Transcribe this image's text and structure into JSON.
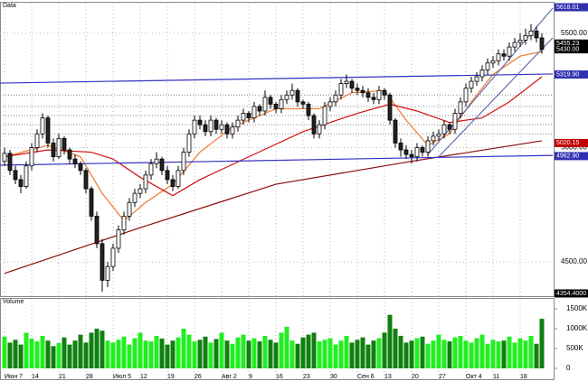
{
  "chart_data": {
    "type": "candlestick",
    "panel_title": "Data",
    "volume_title": "Volume",
    "categories": [
      "Июн 7",
      null,
      null,
      null,
      null,
      "14",
      null,
      null,
      null,
      null,
      "21",
      null,
      null,
      null,
      null,
      "28",
      null,
      null,
      null,
      null,
      "Июл 5",
      null,
      null,
      null,
      null,
      "12",
      null,
      null,
      null,
      null,
      "19",
      null,
      null,
      null,
      null,
      "26",
      null,
      null,
      null,
      null,
      "Авг 2",
      null,
      null,
      null,
      null,
      "9",
      null,
      null,
      null,
      null,
      "16",
      null,
      null,
      null,
      null,
      "23",
      null,
      null,
      null,
      null,
      "30",
      null,
      null,
      null,
      null,
      "Сен 6",
      null,
      null,
      null,
      null,
      "13",
      null,
      null,
      null,
      null,
      "20",
      null,
      null,
      null,
      null,
      "27",
      null,
      null,
      null,
      null,
      "Окт 4",
      null,
      null,
      null,
      null,
      "11",
      null,
      null,
      null,
      null,
      "18",
      null,
      null,
      null,
      null
    ],
    "candles": [
      [
        4940,
        5000,
        4920,
        4975
      ],
      [
        4975,
        4990,
        4880,
        4900
      ],
      [
        4900,
        4920,
        4840,
        4860
      ],
      [
        4860,
        4880,
        4800,
        4830
      ],
      [
        4830,
        4940,
        4820,
        4920
      ],
      [
        4920,
        5020,
        4900,
        5000
      ],
      [
        5000,
        5080,
        4980,
        5060
      ],
      [
        5060,
        5150,
        5040,
        5130
      ],
      [
        5130,
        5140,
        5000,
        5020
      ],
      [
        5020,
        5040,
        4940,
        4960
      ],
      [
        4960,
        5060,
        4950,
        5040
      ],
      [
        5040,
        5050,
        4970,
        4990
      ],
      [
        4990,
        5000,
        4930,
        4950
      ],
      [
        4950,
        4970,
        4910,
        4930
      ],
      [
        4930,
        4940,
        4880,
        4900
      ],
      [
        4900,
        4910,
        4800,
        4820
      ],
      [
        4820,
        4830,
        4680,
        4700
      ],
      [
        4700,
        4720,
        4560,
        4580
      ],
      [
        4580,
        4600,
        4370,
        4420
      ],
      [
        4420,
        4500,
        4390,
        4480
      ],
      [
        4480,
        4580,
        4460,
        4560
      ],
      [
        4560,
        4660,
        4540,
        4640
      ],
      [
        4640,
        4720,
        4620,
        4700
      ],
      [
        4700,
        4780,
        4680,
        4760
      ],
      [
        4760,
        4820,
        4740,
        4800
      ],
      [
        4800,
        4840,
        4780,
        4820
      ],
      [
        4820,
        4900,
        4800,
        4880
      ],
      [
        4880,
        4950,
        4860,
        4930
      ],
      [
        4930,
        4980,
        4910,
        4950
      ],
      [
        4950,
        4960,
        4880,
        4900
      ],
      [
        4900,
        4920,
        4840,
        4860
      ],
      [
        4860,
        4880,
        4810,
        4830
      ],
      [
        4830,
        4920,
        4820,
        4900
      ],
      [
        4900,
        5000,
        4880,
        4980
      ],
      [
        4980,
        5080,
        4960,
        5060
      ],
      [
        5060,
        5140,
        5040,
        5120
      ],
      [
        5120,
        5140,
        5080,
        5100
      ],
      [
        5100,
        5120,
        5050,
        5070
      ],
      [
        5070,
        5140,
        5050,
        5120
      ],
      [
        5120,
        5130,
        5060,
        5080
      ],
      [
        5080,
        5120,
        5060,
        5100
      ],
      [
        5100,
        5110,
        5040,
        5060
      ],
      [
        5060,
        5110,
        5040,
        5090
      ],
      [
        5090,
        5140,
        5070,
        5120
      ],
      [
        5120,
        5170,
        5100,
        5150
      ],
      [
        5150,
        5160,
        5110,
        5130
      ],
      [
        5130,
        5200,
        5110,
        5180
      ],
      [
        5180,
        5190,
        5140,
        5160
      ],
      [
        5160,
        5250,
        5140,
        5220
      ],
      [
        5220,
        5230,
        5170,
        5190
      ],
      [
        5190,
        5200,
        5150,
        5170
      ],
      [
        5170,
        5230,
        5150,
        5210
      ],
      [
        5210,
        5250,
        5190,
        5230
      ],
      [
        5230,
        5280,
        5210,
        5250
      ],
      [
        5250,
        5260,
        5180,
        5200
      ],
      [
        5200,
        5210,
        5170,
        5190
      ],
      [
        5190,
        5200,
        5120,
        5140
      ],
      [
        5140,
        5150,
        5040,
        5060
      ],
      [
        5060,
        5120,
        5040,
        5100
      ],
      [
        5100,
        5200,
        5080,
        5180
      ],
      [
        5180,
        5220,
        5160,
        5200
      ],
      [
        5200,
        5250,
        5180,
        5230
      ],
      [
        5230,
        5300,
        5210,
        5280
      ],
      [
        5280,
        5320,
        5260,
        5290
      ],
      [
        5290,
        5300,
        5240,
        5260
      ],
      [
        5260,
        5280,
        5230,
        5250
      ],
      [
        5250,
        5270,
        5220,
        5240
      ],
      [
        5240,
        5260,
        5200,
        5220
      ],
      [
        5220,
        5240,
        5190,
        5210
      ],
      [
        5210,
        5270,
        5190,
        5250
      ],
      [
        5250,
        5260,
        5210,
        5230
      ],
      [
        5230,
        5240,
        5100,
        5120
      ],
      [
        5120,
        5130,
        5000,
        5020
      ],
      [
        5020,
        5040,
        4960,
        4990
      ],
      [
        4990,
        5010,
        4950,
        4970
      ],
      [
        4970,
        4990,
        4930,
        4960
      ],
      [
        4960,
        5020,
        4940,
        5000
      ],
      [
        5000,
        5010,
        4960,
        4980
      ],
      [
        4980,
        5050,
        4960,
        5030
      ],
      [
        5030,
        5070,
        5010,
        5050
      ],
      [
        5050,
        5080,
        5030,
        5060
      ],
      [
        5060,
        5120,
        5040,
        5100
      ],
      [
        5100,
        5110,
        5060,
        5080
      ],
      [
        5080,
        5170,
        5060,
        5150
      ],
      [
        5150,
        5220,
        5130,
        5200
      ],
      [
        5200,
        5280,
        5180,
        5260
      ],
      [
        5260,
        5310,
        5240,
        5290
      ],
      [
        5290,
        5330,
        5270,
        5310
      ],
      [
        5310,
        5360,
        5290,
        5340
      ],
      [
        5340,
        5390,
        5320,
        5370
      ],
      [
        5370,
        5400,
        5350,
        5380
      ],
      [
        5380,
        5430,
        5360,
        5410
      ],
      [
        5410,
        5430,
        5380,
        5400
      ],
      [
        5400,
        5460,
        5380,
        5440
      ],
      [
        5440,
        5480,
        5420,
        5460
      ],
      [
        5460,
        5500,
        5440,
        5470
      ],
      [
        5470,
        5520,
        5450,
        5490
      ],
      [
        5490,
        5540,
        5470,
        5510
      ],
      [
        5510,
        5530,
        5460,
        5480
      ],
      [
        5480,
        5500,
        5410,
        5430
      ]
    ],
    "volume": [
      800,
      650,
      720,
      600,
      900,
      750,
      680,
      820,
      700,
      560,
      640,
      780,
      600,
      700,
      850,
      650,
      900,
      1000,
      950,
      700,
      650,
      720,
      800,
      600,
      760,
      900,
      700,
      680,
      820,
      750,
      600,
      700,
      780,
      1000,
      850,
      680,
      720,
      800,
      650,
      740,
      900,
      700,
      620,
      780,
      850,
      700,
      760,
      680,
      820,
      720,
      650,
      900,
      1050,
      700,
      620,
      780,
      850,
      900,
      680,
      720,
      760,
      600,
      700,
      820,
      650,
      720,
      780,
      600,
      700,
      760,
      900,
      1350,
      1000,
      820,
      650,
      700,
      760,
      800,
      620,
      700,
      850,
      720,
      680,
      780,
      820,
      700,
      650,
      760,
      850,
      620,
      720,
      680,
      700,
      800,
      650,
      760,
      700,
      820,
      620,
      1250
    ],
    "up_color": "#22ee22",
    "down_color": "#108010",
    "ylim": [
      4354.4,
      5618.01
    ],
    "yticks": [
      {
        "value": 5500,
        "label": "5500.00"
      },
      {
        "value": 5000,
        "label": "5000.00"
      },
      {
        "value": 4500,
        "label": "4500.00"
      }
    ],
    "price_markers": [
      {
        "value": 5618.01,
        "label": "5618.01",
        "color": "#3030b0"
      },
      {
        "value": 5455.23,
        "label": "5455.23",
        "color": "#000000"
      },
      {
        "value": 5430,
        "label": "5430.00",
        "color": "#000000"
      },
      {
        "value": 5319.9,
        "label": "5319.90",
        "color": "#3030b0"
      },
      {
        "value": 5020.15,
        "label": "5020.15",
        "color": "#c00000"
      },
      {
        "value": 4962.9,
        "label": "4962.90",
        "color": "#3030b0"
      },
      {
        "value": 4354.4,
        "label": "4354.4000",
        "color": "#000000"
      }
    ],
    "vlim": [
      0,
      1730
    ],
    "vticks": [
      {
        "value": 1500,
        "label": "1500K"
      },
      {
        "value": 1000,
        "label": "1000K"
      },
      {
        "value": 500,
        "label": "500K"
      },
      0
    ],
    "levels": [
      5230,
      5180,
      5140,
      5100,
      5060
    ],
    "overlays": [
      {
        "color": "#f07830",
        "x": [
          0,
          8,
          14,
          18,
          22,
          26,
          31,
          36,
          42,
          50,
          58,
          64,
          70,
          74,
          78,
          82,
          86,
          90,
          95,
          99
        ],
        "values": [
          4960,
          5010,
          4960,
          4800,
          4680,
          4760,
          4840,
          4980,
          5090,
          5170,
          5170,
          5240,
          5250,
          5120,
          5010,
          5060,
          5200,
          5320,
          5400,
          5420
        ]
      },
      {
        "color": "#d01010",
        "x": [
          0,
          8,
          16,
          20,
          25,
          31,
          36,
          45,
          55,
          65,
          71,
          76,
          82,
          88,
          93,
          99
        ],
        "values": [
          4960,
          4990,
          4980,
          4950,
          4870,
          4790,
          4860,
          4960,
          5070,
          5150,
          5190,
          5160,
          5110,
          5130,
          5200,
          5310
        ]
      },
      {
        "color": "#8b0a0a",
        "x": [
          0,
          25,
          50,
          75,
          99
        ],
        "values": [
          4450,
          4650,
          4840,
          4940,
          5030
        ]
      },
      {
        "color": "#3030c0",
        "x": [
          -1,
          101
        ],
        "values": [
          5282,
          5322
        ]
      },
      {
        "color": "#3030c0",
        "x": [
          -1,
          101
        ],
        "values": [
          4923,
          4966
        ]
      },
      {
        "color": "#6070b0",
        "x": [
          78,
          101
        ],
        "values": [
          4970,
          5610
        ]
      },
      {
        "color": "#6070b0",
        "x": [
          80,
          101
        ],
        "values": [
          4960,
          5480
        ]
      }
    ]
  }
}
